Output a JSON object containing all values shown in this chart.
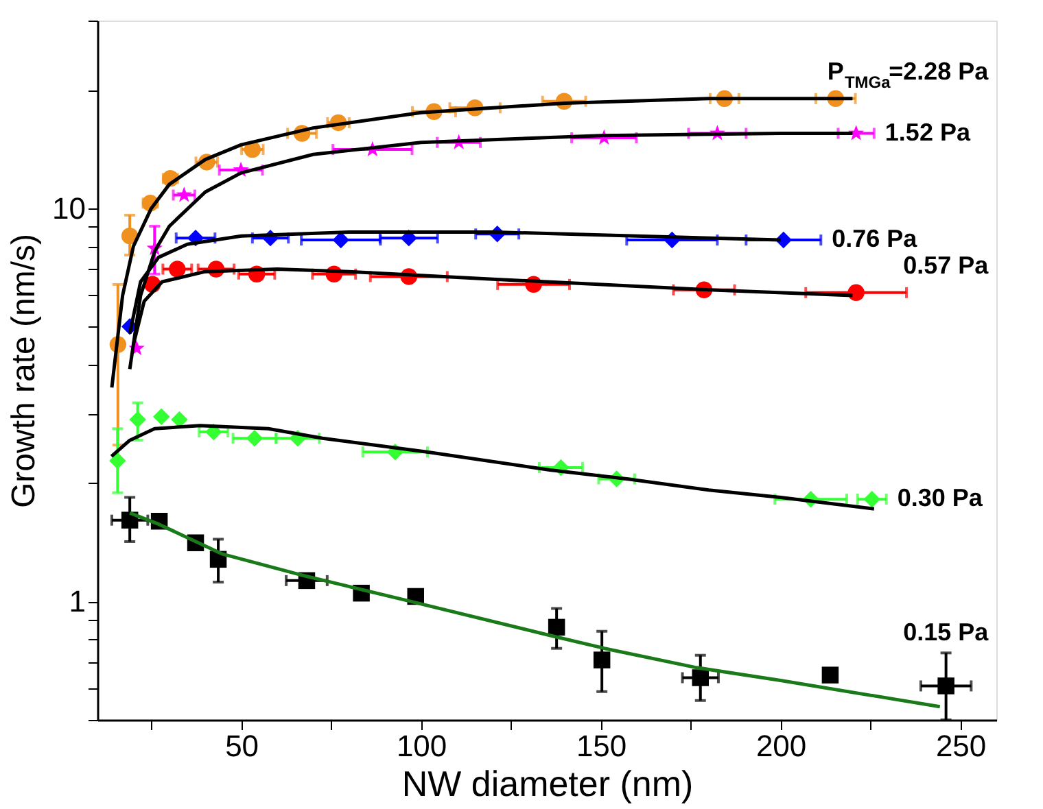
{
  "chart_data": {
    "type": "scatter",
    "xlabel": "NW diameter (nm)",
    "ylabel": "Growth rate (nm/s)",
    "xlim": [
      10,
      260
    ],
    "ylim": [
      0.5,
      30
    ],
    "log": "y",
    "grid": false,
    "xticks": [
      {
        "value": 25,
        "label": null
      },
      50,
      {
        "value": 75,
        "label": null
      },
      100,
      {
        "value": 125,
        "label": null
      },
      150,
      {
        "value": 175,
        "label": null
      },
      200,
      {
        "value": 225,
        "label": null
      },
      250
    ],
    "yticks": [
      {
        "value": 0.5,
        "label": null
      },
      {
        "value": 0.6,
        "label": null
      },
      {
        "value": 0.7,
        "label": null
      },
      {
        "value": 0.8,
        "label": null
      },
      {
        "value": 0.9,
        "label": null
      },
      1,
      {
        "value": 2,
        "label": null
      },
      {
        "value": 3,
        "label": null
      },
      {
        "value": 4,
        "label": null
      },
      {
        "value": 5,
        "label": null
      },
      {
        "value": 6,
        "label": null
      },
      {
        "value": 7,
        "label": null
      },
      {
        "value": 8,
        "label": null
      },
      {
        "value": 9,
        "label": null
      },
      10,
      {
        "value": 20,
        "label": null
      },
      {
        "value": 30,
        "label": null
      }
    ],
    "series": [
      {
        "name": "P$_{TMGa}$=2.28 Pa",
        "marker": "circle",
        "color": "#f0901e",
        "x": [
          15.7,
          19,
          24.7,
          30.3,
          40.4,
          53.1,
          66.9,
          77,
          103.6,
          115,
          139.8,
          184.4,
          215.3
        ],
        "values": [
          4.5,
          8.5,
          10.3,
          11.9,
          13.1,
          14.1,
          15.5,
          16.5,
          17.6,
          18,
          18.7,
          19,
          19
        ],
        "errors": [
          [
            2.5,
            6.4
          ],
          [
            7.6,
            9.6
          ],
          null,
          null,
          null,
          null,
          null,
          null,
          null,
          null,
          null,
          null,
          null
        ],
        "xerrors": [
          null,
          null,
          2,
          2,
          3,
          3,
          4,
          3,
          6,
          7,
          6,
          4,
          5.5
        ]
      },
      {
        "name": "1.52 Pa",
        "marker": "star",
        "color": "#ff00ff",
        "x": [
          20.9,
          25.9,
          34.1,
          49.9,
          86.5,
          110.5,
          150.9,
          182.4,
          221
        ],
        "values": [
          4.4,
          7.9,
          10.8,
          12.5,
          14.1,
          14.7,
          15.1,
          15.5,
          15.5
        ],
        "errors": [
          null,
          [
            6.8,
            9
          ],
          null,
          null,
          null,
          null,
          null,
          null,
          null
        ],
        "xerrors": [
          null,
          null,
          3,
          6,
          11,
          6,
          9,
          8,
          5
        ]
      },
      {
        "name": "0.76 Pa",
        "marker": "diamond",
        "color": "#0000ff",
        "x": [
          19,
          37.3,
          58.1,
          77.7,
          96.6,
          121.2,
          169.8,
          200.8
        ],
        "values": [
          5.0,
          8.4,
          8.4,
          8.3,
          8.4,
          8.6,
          8.3,
          8.3
        ],
        "xerrors": [
          null,
          5.4,
          5,
          11,
          8,
          6,
          12.6,
          10.4
        ]
      },
      {
        "name": "0.57 Pa",
        "marker": "circle",
        "color": "#ff0000",
        "x": [
          25.3,
          32.2,
          43,
          54.3,
          75.8,
          96.6,
          131.3,
          178.7,
          221
        ],
        "values": [
          6.4,
          7.0,
          7.0,
          6.8,
          6.8,
          6.7,
          6.4,
          6.2,
          6.1
        ],
        "xerrors": [
          null,
          4,
          5,
          5,
          6,
          10.7,
          10,
          8.5,
          14
        ]
      },
      {
        "name": "0.30 Pa",
        "marker": "diamond",
        "color": "#33ff33",
        "x": [
          15.6,
          21.2,
          27.8,
          32.8,
          42.3,
          53.7,
          65.7,
          92.8,
          138.9,
          154.4,
          208.4,
          225.4
        ],
        "values": [
          2.28,
          2.9,
          2.95,
          2.9,
          2.7,
          2.6,
          2.6,
          2.4,
          2.19,
          2.05,
          1.82,
          1.82
        ],
        "errors": [
          [
            1.89,
            2.75
          ],
          [
            2.57,
            3.2
          ],
          null,
          null,
          null,
          null,
          null,
          null,
          null,
          null,
          null,
          null
        ],
        "xerrors": [
          null,
          null,
          null,
          null,
          4,
          6,
          6,
          9,
          6,
          5,
          10,
          4
        ]
      },
      {
        "name": "0.15 Pa",
        "marker": "square",
        "color": "#000000",
        "x": [
          19,
          27.2,
          37.3,
          43.6,
          68.2,
          83.4,
          98.5,
          137.7,
          150.3,
          177.7,
          213.8,
          246
        ],
        "values": [
          1.61,
          1.6,
          1.41,
          1.28,
          1.13,
          1.05,
          1.03,
          0.86,
          0.71,
          0.64,
          0.65,
          0.61
        ],
        "errors": [
          [
            1.42,
            1.84
          ],
          null,
          null,
          [
            1.12,
            1.44
          ],
          null,
          null,
          null,
          [
            0.76,
            0.96
          ],
          [
            0.59,
            0.84
          ],
          [
            0.56,
            0.73
          ],
          null,
          [
            0.5,
            0.74
          ]
        ],
        "xerrors": [
          5,
          null,
          null,
          null,
          5.7,
          null,
          null,
          null,
          null,
          5,
          null,
          7
        ]
      },
      {
        "type": "line",
        "color": "#000000",
        "x": [
          14,
          17,
          20,
          25,
          30,
          40,
          50,
          70,
          100,
          140,
          180,
          220
        ],
        "values": [
          3.5,
          6,
          8,
          10,
          11.5,
          13.3,
          14.5,
          16,
          17.5,
          18.5,
          19,
          19
        ]
      },
      {
        "type": "line",
        "color": "#000000",
        "x": [
          19,
          22,
          26,
          30,
          40,
          50,
          70,
          100,
          150,
          200,
          220
        ],
        "values": [
          3.9,
          6,
          7.8,
          9,
          11,
          12.3,
          13.7,
          14.7,
          15.3,
          15.5,
          15.5
        ]
      },
      {
        "type": "line",
        "color": "#000000",
        "x": [
          19,
          22,
          27,
          35,
          50,
          80,
          120,
          160,
          200
        ],
        "values": [
          4.8,
          6.5,
          7.5,
          8.1,
          8.5,
          8.7,
          8.7,
          8.5,
          8.3
        ]
      },
      {
        "type": "line",
        "color": "#000000",
        "x": [
          20,
          23,
          28,
          40,
          60,
          80,
          120,
          180,
          220
        ],
        "values": [
          4.5,
          5.8,
          6.5,
          6.9,
          7.0,
          6.9,
          6.6,
          6.2,
          6.0
        ]
      },
      {
        "type": "line",
        "color": "#000000",
        "x": [
          13.9,
          19,
          25.9,
          38.5,
          57.5,
          72.6,
          101.7,
          135.8,
          157.2,
          180,
          200,
          226
        ],
        "values": [
          2.34,
          2.57,
          2.75,
          2.8,
          2.75,
          2.6,
          2.4,
          2.16,
          2.05,
          1.92,
          1.84,
          1.72
        ]
      },
      {
        "type": "line",
        "color": "#1a7a1a",
        "x": [
          19,
          27.2,
          44.8,
          66.3,
          95.3,
          135.8,
          151,
          176.2,
          200,
          244.3
        ],
        "values": [
          1.68,
          1.57,
          1.32,
          1.17,
          1.01,
          0.82,
          0.76,
          0.68,
          0.63,
          0.54
        ]
      }
    ]
  }
}
